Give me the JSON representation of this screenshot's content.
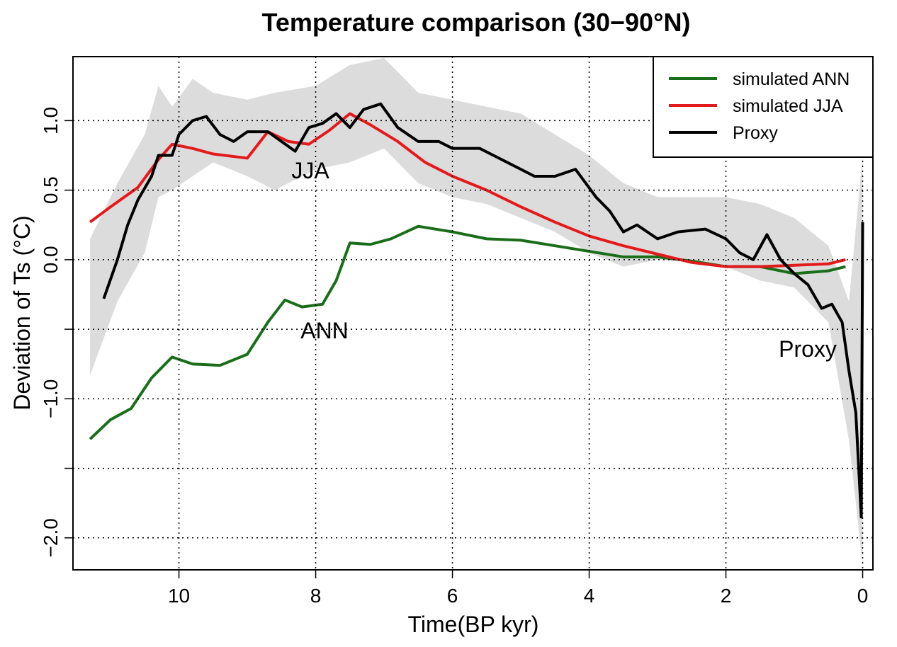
{
  "chart_data": {
    "type": "line",
    "title": "Temperature comparison (30−90°N)",
    "x_label": "Time(BP kyr)",
    "y_label": "Deviation of Ts (°C)",
    "xlim": [
      11.55,
      -0.15
    ],
    "ylim": [
      -2.23,
      1.46
    ],
    "xticks": [
      10,
      8,
      6,
      4,
      2,
      0
    ],
    "yticks": [
      {
        "value": -2,
        "label": "−2.0"
      },
      {
        "value": -1.5,
        "label": null
      },
      {
        "value": -1,
        "label": "−1.0"
      },
      {
        "value": -0.5,
        "label": null
      },
      {
        "value": 0,
        "label": "0.0"
      },
      0.5,
      {
        "value": 1,
        "label": "1.0"
      }
    ],
    "grid": true,
    "legend_position": "top-right",
    "band": {
      "color": "#dcdcdc",
      "x": [
        11.3,
        10.9,
        10.5,
        10.3,
        10.1,
        9.8,
        9.5,
        9.0,
        8.6,
        8.0,
        7.5,
        7.0,
        6.5,
        6.0,
        5.5,
        5.0,
        4.5,
        4.0,
        3.5,
        3.0,
        2.5,
        2.0,
        1.5,
        1.0,
        0.5,
        0.2,
        0.0
      ],
      "upper": [
        0.15,
        0.55,
        0.9,
        1.25,
        1.1,
        1.3,
        1.2,
        1.15,
        1.2,
        1.25,
        1.4,
        1.45,
        1.2,
        1.15,
        1.1,
        1.05,
        0.9,
        0.75,
        0.55,
        0.45,
        0.45,
        0.45,
        0.4,
        0.3,
        0.1,
        -0.3,
        0.75
      ],
      "lower": [
        -0.83,
        -0.3,
        0.05,
        0.45,
        0.5,
        0.6,
        0.7,
        0.6,
        0.5,
        0.65,
        0.7,
        0.8,
        0.55,
        0.45,
        0.4,
        0.3,
        0.2,
        0.05,
        -0.05,
        0.0,
        -0.02,
        -0.05,
        -0.15,
        -0.2,
        -0.45,
        -1.3,
        -2.2
      ]
    },
    "series": [
      {
        "name": "simulated ANN",
        "color": "#1a6e1a",
        "x": [
          11.3,
          11.0,
          10.7,
          10.4,
          10.1,
          9.8,
          9.4,
          9.0,
          8.7,
          8.45,
          8.2,
          7.9,
          7.7,
          7.5,
          7.2,
          6.9,
          6.5,
          6.0,
          5.5,
          5.0,
          4.5,
          4.0,
          3.5,
          3.0,
          2.5,
          2.0,
          1.5,
          1.0,
          0.5,
          0.25
        ],
        "values": [
          -1.29,
          -1.15,
          -1.07,
          -0.85,
          -0.7,
          -0.75,
          -0.76,
          -0.68,
          -0.45,
          -0.29,
          -0.34,
          -0.32,
          -0.15,
          0.12,
          0.11,
          0.15,
          0.24,
          0.2,
          0.15,
          0.14,
          0.1,
          0.06,
          0.02,
          0.02,
          -0.01,
          -0.05,
          -0.05,
          -0.1,
          -0.08,
          -0.05
        ]
      },
      {
        "name": "simulated JJA",
        "color": "#e31a1c",
        "x": [
          11.3,
          11.0,
          10.6,
          10.3,
          10.1,
          9.8,
          9.5,
          9.0,
          8.7,
          8.4,
          8.1,
          7.8,
          7.5,
          7.2,
          6.8,
          6.4,
          6.0,
          5.5,
          5.0,
          4.5,
          4.0,
          3.5,
          3.0,
          2.5,
          2.0,
          1.5,
          1.0,
          0.5,
          0.25
        ],
        "values": [
          0.27,
          0.38,
          0.52,
          0.72,
          0.83,
          0.8,
          0.76,
          0.73,
          0.92,
          0.85,
          0.83,
          0.93,
          1.05,
          0.97,
          0.85,
          0.7,
          0.6,
          0.5,
          0.38,
          0.27,
          0.17,
          0.1,
          0.04,
          -0.02,
          -0.05,
          -0.05,
          -0.04,
          -0.03,
          0.0
        ]
      },
      {
        "name": "Proxy",
        "color": "#000000",
        "x": [
          11.1,
          10.9,
          10.75,
          10.6,
          10.4,
          10.3,
          10.1,
          10.0,
          9.8,
          9.6,
          9.4,
          9.2,
          9.0,
          8.7,
          8.5,
          8.3,
          8.1,
          7.9,
          7.7,
          7.5,
          7.3,
          7.05,
          6.8,
          6.5,
          6.2,
          6.0,
          5.6,
          5.4,
          5.0,
          4.8,
          4.5,
          4.2,
          3.9,
          3.7,
          3.5,
          3.3,
          3.0,
          2.7,
          2.3,
          2.0,
          1.8,
          1.6,
          1.4,
          1.2,
          1.0,
          0.8,
          0.6,
          0.45,
          0.3,
          0.2,
          0.1,
          0.02,
          0.0
        ],
        "values": [
          -0.28,
          0.0,
          0.25,
          0.43,
          0.6,
          0.75,
          0.75,
          0.9,
          1.0,
          1.03,
          0.9,
          0.85,
          0.92,
          0.92,
          0.85,
          0.78,
          0.95,
          0.98,
          1.05,
          0.95,
          1.08,
          1.12,
          0.95,
          0.85,
          0.85,
          0.8,
          0.8,
          0.75,
          0.65,
          0.6,
          0.6,
          0.65,
          0.45,
          0.35,
          0.2,
          0.25,
          0.15,
          0.2,
          0.22,
          0.15,
          0.05,
          0.0,
          0.18,
          0.0,
          -0.1,
          -0.18,
          -0.35,
          -0.32,
          -0.45,
          -0.8,
          -1.1,
          -1.85,
          0.27
        ]
      }
    ],
    "annotations": [
      "JJA",
      "ANN",
      "Proxy"
    ]
  }
}
